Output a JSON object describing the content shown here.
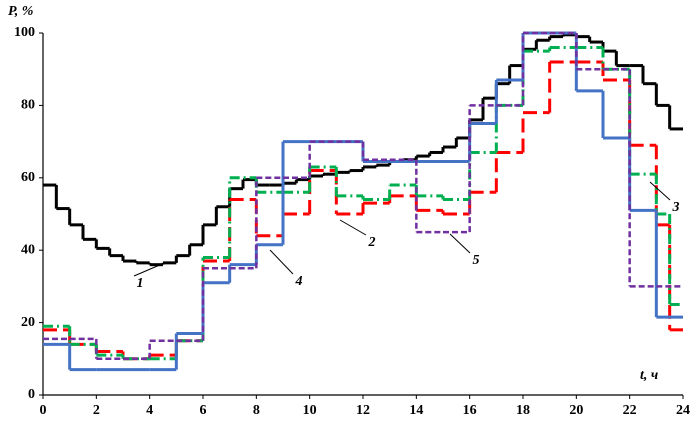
{
  "chart_data": {
    "type": "line",
    "drawstyle": "steps-post",
    "ylabel": "P, %",
    "xlabel": "t, ч",
    "xlim": [
      0,
      24
    ],
    "ylim": [
      0,
      100
    ],
    "xticks": [
      0,
      2,
      4,
      6,
      8,
      10,
      12,
      14,
      16,
      18,
      20,
      22,
      24
    ],
    "yticks": [
      0,
      20,
      40,
      60,
      80,
      100
    ],
    "series": [
      {
        "name": "1",
        "color": "#000000",
        "dash": "solid",
        "width": 3,
        "x": [
          0,
          0.5,
          1,
          1.5,
          2,
          2.5,
          3,
          3.5,
          4,
          4.5,
          5,
          5.5,
          6,
          6.5,
          7,
          7.5,
          8,
          8.5,
          9,
          9.5,
          10,
          10.5,
          11,
          11.5,
          12,
          12.5,
          13,
          13.5,
          14,
          14.5,
          15,
          15.5,
          16,
          16.5,
          17,
          17.5,
          18,
          18.5,
          19,
          19.5,
          20,
          20.5,
          21,
          21.5,
          22,
          22.5,
          23,
          23.5
        ],
        "values": [
          58,
          51.5,
          47,
          43,
          40.5,
          38.5,
          37,
          36.5,
          36,
          36.5,
          38.5,
          41.5,
          47,
          52,
          57,
          59.5,
          58,
          58,
          58.5,
          59.5,
          60.5,
          61,
          61.5,
          62,
          63,
          63.5,
          64.5,
          65,
          66,
          67,
          68.5,
          71,
          76,
          82,
          86,
          91,
          95.5,
          98,
          99,
          99.5,
          99,
          97.5,
          95,
          91,
          91,
          86,
          80,
          73.5
        ]
      },
      {
        "name": "2",
        "color": "#ff0000",
        "dash": "14 6",
        "width": 3,
        "x": [
          0,
          1,
          2,
          3,
          4,
          5,
          6,
          7,
          8,
          9,
          10,
          11,
          12,
          13,
          14,
          15,
          16,
          17,
          18,
          19,
          20,
          21,
          22,
          23,
          23.5
        ],
        "values": [
          18,
          14,
          12,
          10,
          11,
          15,
          37,
          54,
          44,
          50,
          62,
          50,
          53,
          55,
          51,
          50,
          56,
          67,
          78,
          92,
          92,
          87,
          69,
          47,
          18
        ]
      },
      {
        "name": "3",
        "color": "#00b050",
        "dash": "10 4 2 4",
        "width": 3,
        "x": [
          0,
          1,
          2,
          3,
          4,
          5,
          6,
          7,
          8,
          9,
          10,
          11,
          12,
          13,
          14,
          15,
          16,
          17,
          18,
          19,
          20,
          21,
          22,
          23,
          23.5
        ],
        "values": [
          19,
          14,
          11,
          10,
          10,
          15,
          38,
          60,
          56,
          56,
          63,
          55,
          54,
          58,
          55,
          54,
          67,
          80,
          95,
          96,
          96,
          90,
          61,
          50,
          25
        ]
      },
      {
        "name": "4",
        "color": "#4472c4",
        "dash": "solid",
        "width": 3,
        "x": [
          0,
          1,
          2,
          3,
          4,
          5,
          6,
          7,
          8,
          9,
          10,
          11,
          12,
          13,
          14,
          15,
          16,
          17,
          18,
          19,
          20,
          21,
          22,
          23
        ],
        "values": [
          14,
          7,
          7,
          7,
          7,
          17,
          31,
          36,
          41.5,
          70,
          70,
          70,
          64.5,
          64.5,
          64.5,
          64.5,
          75,
          87,
          100,
          100,
          84,
          71,
          51,
          21.5
        ]
      },
      {
        "name": "5",
        "color": "#7030a0",
        "dash": "6 3",
        "width": 2.5,
        "x": [
          0,
          1,
          2,
          3,
          4,
          5,
          6,
          7,
          8,
          9,
          10,
          11,
          12,
          13,
          14,
          15,
          16,
          17,
          18,
          19,
          20,
          21,
          22,
          23
        ],
        "values": [
          15.5,
          15.5,
          10,
          10,
          15,
          15,
          35,
          35,
          60,
          60,
          70,
          70,
          65,
          65,
          45,
          45,
          80,
          80,
          100,
          100,
          90,
          90,
          30,
          30
        ]
      }
    ]
  }
}
